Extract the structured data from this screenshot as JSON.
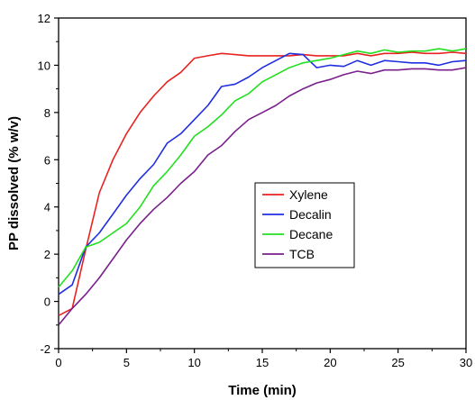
{
  "chart_data": {
    "type": "line",
    "xlabel": "Time (min)",
    "ylabel": "PP dissolved (% w/v)",
    "xlim": [
      0,
      30
    ],
    "ylim": [
      -2,
      12
    ],
    "xticks": [
      0,
      5,
      10,
      15,
      20,
      25,
      30
    ],
    "yticks": [
      -2,
      0,
      2,
      4,
      6,
      8,
      10,
      12
    ],
    "grid": false,
    "legend_position": "center-right",
    "series": [
      {
        "name": "Xylene",
        "color": "#e8231f",
        "x": [
          0,
          1,
          2,
          3,
          4,
          5,
          6,
          7,
          8,
          9,
          10,
          11,
          12,
          13,
          14,
          15,
          16,
          17,
          18,
          19,
          20,
          21,
          22,
          23,
          24,
          25,
          26,
          27,
          28,
          29,
          30
        ],
        "y": [
          -0.6,
          -0.3,
          2.2,
          4.6,
          6.0,
          7.1,
          8.0,
          8.7,
          9.3,
          9.7,
          10.3,
          10.4,
          10.5,
          10.45,
          10.4,
          10.4,
          10.4,
          10.4,
          10.45,
          10.4,
          10.4,
          10.4,
          10.5,
          10.4,
          10.5,
          10.5,
          10.55,
          10.5,
          10.5,
          10.55,
          10.5
        ]
      },
      {
        "name": "Decalin",
        "color": "#1f2ee0",
        "x": [
          0,
          1,
          2,
          3,
          4,
          5,
          6,
          7,
          8,
          9,
          10,
          11,
          12,
          13,
          14,
          15,
          16,
          17,
          18,
          19,
          20,
          21,
          22,
          23,
          24,
          25,
          26,
          27,
          28,
          29,
          30
        ],
        "y": [
          0.3,
          0.7,
          2.3,
          2.9,
          3.7,
          4.5,
          5.2,
          5.8,
          6.7,
          7.1,
          7.7,
          8.3,
          9.1,
          9.2,
          9.5,
          9.9,
          10.2,
          10.5,
          10.45,
          9.9,
          10.0,
          9.95,
          10.2,
          10.0,
          10.2,
          10.15,
          10.1,
          10.1,
          10.0,
          10.15,
          10.2
        ]
      },
      {
        "name": "Decane",
        "color": "#22e01f",
        "x": [
          0,
          1,
          2,
          3,
          4,
          5,
          6,
          7,
          8,
          9,
          10,
          11,
          12,
          13,
          14,
          15,
          16,
          17,
          18,
          19,
          20,
          21,
          22,
          23,
          24,
          25,
          26,
          27,
          28,
          29,
          30
        ],
        "y": [
          0.6,
          1.3,
          2.3,
          2.5,
          2.9,
          3.3,
          4.0,
          4.9,
          5.5,
          6.2,
          7.0,
          7.4,
          7.9,
          8.5,
          8.8,
          9.3,
          9.6,
          9.9,
          10.1,
          10.2,
          10.3,
          10.45,
          10.6,
          10.5,
          10.65,
          10.55,
          10.6,
          10.6,
          10.7,
          10.6,
          10.7
        ]
      },
      {
        "name": "TCB",
        "color": "#7a1f8c",
        "x": [
          0,
          1,
          2,
          3,
          4,
          5,
          6,
          7,
          8,
          9,
          10,
          11,
          12,
          13,
          14,
          15,
          16,
          17,
          18,
          19,
          20,
          21,
          22,
          23,
          24,
          25,
          26,
          27,
          28,
          29,
          30
        ],
        "y": [
          -1.0,
          -0.3,
          0.3,
          1.0,
          1.8,
          2.6,
          3.3,
          3.9,
          4.4,
          5.0,
          5.5,
          6.2,
          6.6,
          7.2,
          7.7,
          8.0,
          8.3,
          8.7,
          9.0,
          9.25,
          9.4,
          9.6,
          9.75,
          9.65,
          9.8,
          9.8,
          9.85,
          9.85,
          9.8,
          9.8,
          9.9
        ]
      }
    ]
  }
}
